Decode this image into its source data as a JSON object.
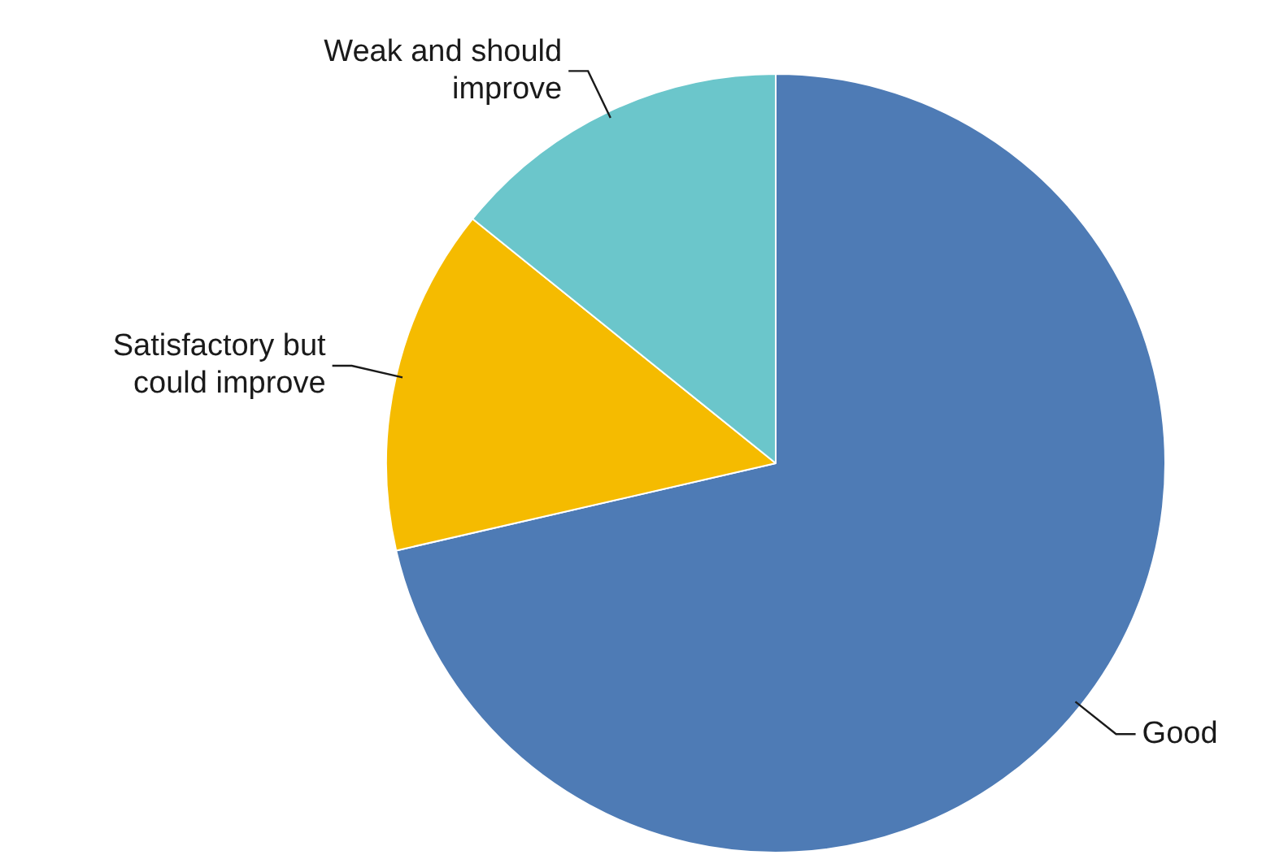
{
  "chart_data": {
    "type": "pie",
    "categories": [
      "Good",
      "Satisfactory but could improve",
      "Weak and should improve"
    ],
    "values": [
      71.4,
      14.4,
      14.2
    ],
    "colors": [
      "#4e7bb5",
      "#f5bb00",
      "#6bc6cb"
    ],
    "legend": false
  }
}
